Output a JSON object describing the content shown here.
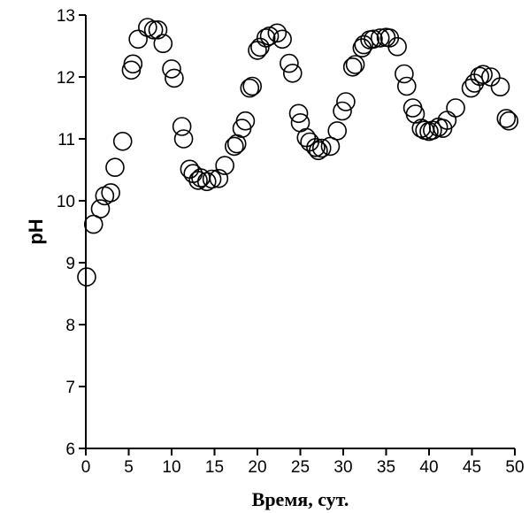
{
  "chart_data": {
    "type": "scatter",
    "title": "",
    "xlabel": "Время, сут.",
    "ylabel": "pH",
    "xlim": [
      0,
      50
    ],
    "ylim": [
      6,
      13
    ],
    "x_ticks": [
      0,
      5,
      10,
      15,
      20,
      25,
      30,
      35,
      40,
      45,
      50
    ],
    "y_ticks": [
      6,
      7,
      8,
      9,
      10,
      11,
      12,
      13
    ],
    "grid": false,
    "marker": "open-circle",
    "marker_color": "#000000",
    "series": [
      {
        "points": [
          [
            0.1,
            8.77
          ],
          [
            0.9,
            9.62
          ],
          [
            1.7,
            9.87
          ],
          [
            2.2,
            10.08
          ],
          [
            2.9,
            10.13
          ],
          [
            3.4,
            10.54
          ],
          [
            4.3,
            10.96
          ],
          [
            5.3,
            12.11
          ],
          [
            5.5,
            12.21
          ],
          [
            6.1,
            12.61
          ],
          [
            7.2,
            12.8
          ],
          [
            7.9,
            12.76
          ],
          [
            8.4,
            12.76
          ],
          [
            9.0,
            12.54
          ],
          [
            10.0,
            12.13
          ],
          [
            10.3,
            11.98
          ],
          [
            11.2,
            11.2
          ],
          [
            11.4,
            11.0
          ],
          [
            12.1,
            10.51
          ],
          [
            12.5,
            10.44
          ],
          [
            13.1,
            10.33
          ],
          [
            13.4,
            10.37
          ],
          [
            14.1,
            10.31
          ],
          [
            14.7,
            10.35
          ],
          [
            15.5,
            10.36
          ],
          [
            16.2,
            10.57
          ],
          [
            17.3,
            10.88
          ],
          [
            17.6,
            10.92
          ],
          [
            18.2,
            11.17
          ],
          [
            18.6,
            11.29
          ],
          [
            19.1,
            11.82
          ],
          [
            19.4,
            11.85
          ],
          [
            20.0,
            12.43
          ],
          [
            20.3,
            12.48
          ],
          [
            21.0,
            12.63
          ],
          [
            21.4,
            12.66
          ],
          [
            22.3,
            12.71
          ],
          [
            22.9,
            12.61
          ],
          [
            23.7,
            12.22
          ],
          [
            24.1,
            12.06
          ],
          [
            24.8,
            11.41
          ],
          [
            25.0,
            11.26
          ],
          [
            25.7,
            11.02
          ],
          [
            26.1,
            10.95
          ],
          [
            26.8,
            10.86
          ],
          [
            27.1,
            10.81
          ],
          [
            27.5,
            10.85
          ],
          [
            28.5,
            10.88
          ],
          [
            29.3,
            11.13
          ],
          [
            29.9,
            11.45
          ],
          [
            30.3,
            11.6
          ],
          [
            31.1,
            12.16
          ],
          [
            31.4,
            12.2
          ],
          [
            32.2,
            12.47
          ],
          [
            32.4,
            12.52
          ],
          [
            33.1,
            12.6
          ],
          [
            33.5,
            12.61
          ],
          [
            34.3,
            12.63
          ],
          [
            35.0,
            12.64
          ],
          [
            35.4,
            12.63
          ],
          [
            36.3,
            12.49
          ],
          [
            37.1,
            12.05
          ],
          [
            37.4,
            11.85
          ],
          [
            38.1,
            11.5
          ],
          [
            38.4,
            11.4
          ],
          [
            39.1,
            11.17
          ],
          [
            39.5,
            11.14
          ],
          [
            40.0,
            11.12
          ],
          [
            40.4,
            11.14
          ],
          [
            41.1,
            11.19
          ],
          [
            41.6,
            11.17
          ],
          [
            42.1,
            11.3
          ],
          [
            43.1,
            11.5
          ],
          [
            44.9,
            11.82
          ],
          [
            45.3,
            11.9
          ],
          [
            45.9,
            12.01
          ],
          [
            46.3,
            12.04
          ],
          [
            47.2,
            12.0
          ],
          [
            48.3,
            11.84
          ],
          [
            49.0,
            11.33
          ],
          [
            49.3,
            11.29
          ]
        ]
      }
    ]
  }
}
